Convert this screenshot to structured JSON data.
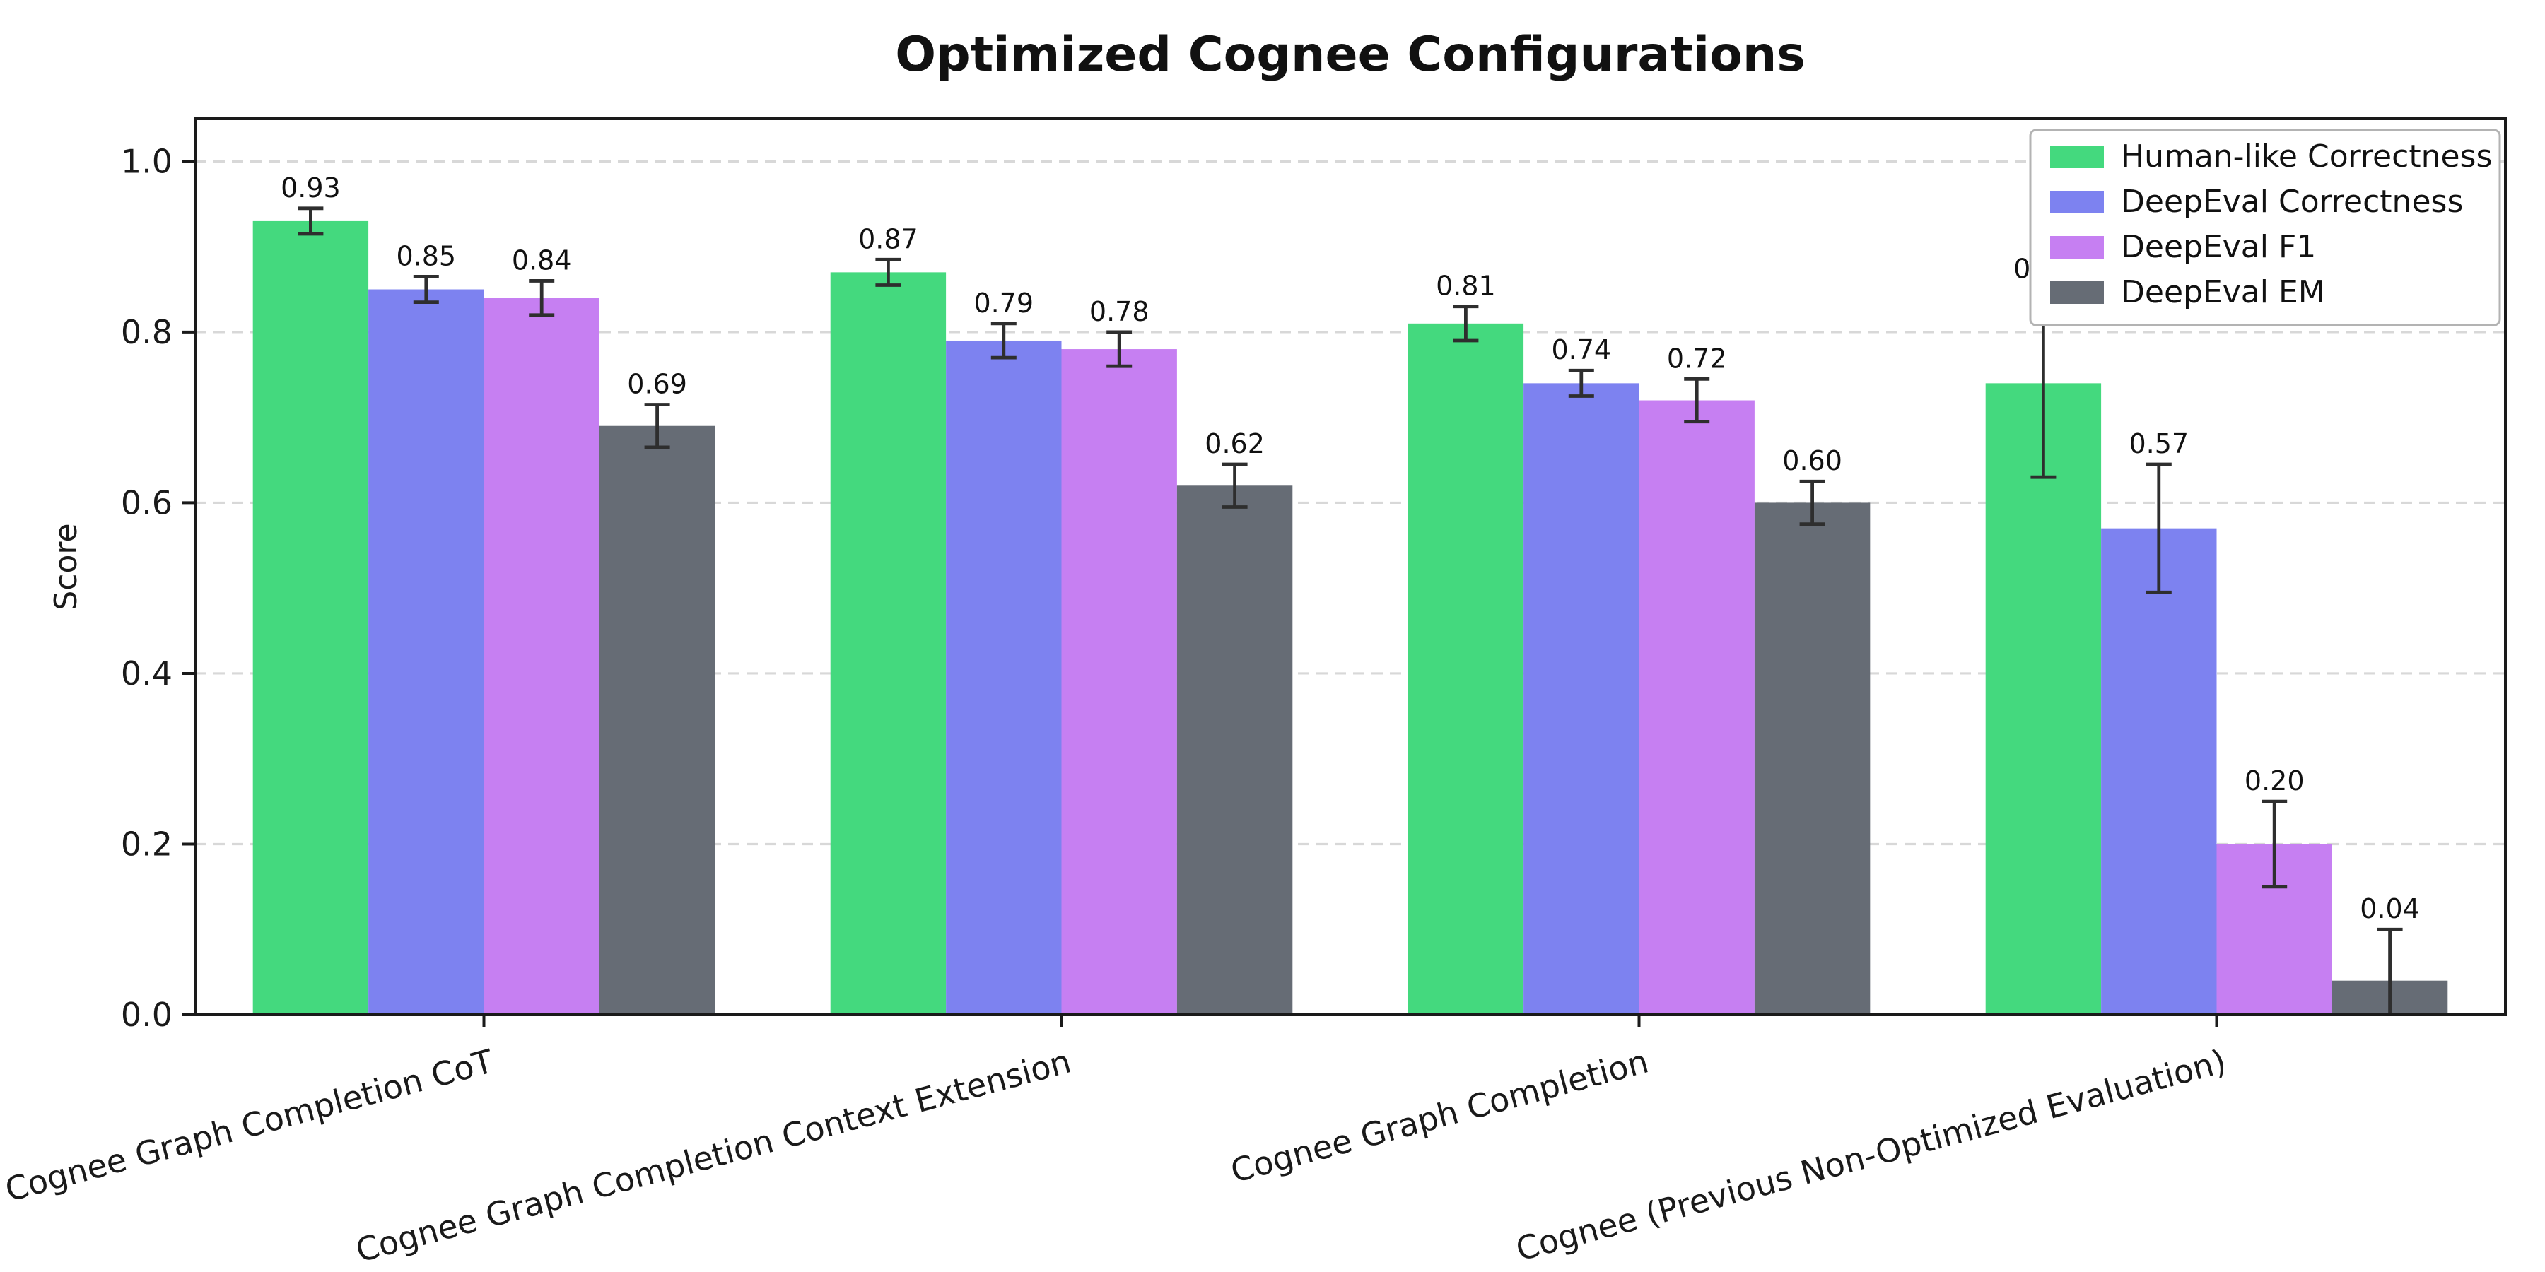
{
  "chart_data": {
    "type": "bar",
    "title": "Optimized Cognee Configurations",
    "xlabel": "",
    "ylabel": "Score",
    "ylim": [
      0,
      1.05
    ],
    "yticks": [
      0.0,
      0.2,
      0.4,
      0.6,
      0.8,
      1.0
    ],
    "grid": "dashed-horizontal",
    "legend_position": "upper-right",
    "error_bars": true,
    "bar_label_format": "0.00",
    "categories": [
      "Cognee Graph Completion CoT",
      "Cognee Graph Completion Context Extension",
      "Cognee Graph Completion",
      "Cognee (Previous Non-Optimized Evaluation)"
    ],
    "series": [
      {
        "name": "Human-like Correctness",
        "color": "#44d97e",
        "values": [
          0.93,
          0.87,
          0.81,
          0.74
        ],
        "errors": [
          0.015,
          0.015,
          0.02,
          0.11
        ]
      },
      {
        "name": "DeepEval Correctness",
        "color": "#7d82f0",
        "values": [
          0.85,
          0.79,
          0.74,
          0.57
        ],
        "errors": [
          0.015,
          0.02,
          0.015,
          0.075
        ]
      },
      {
        "name": "DeepEval F1",
        "color": "#c67ff2",
        "values": [
          0.84,
          0.78,
          0.72,
          0.2
        ],
        "errors": [
          0.02,
          0.02,
          0.025,
          0.05
        ]
      },
      {
        "name": "DeepEval EM",
        "color": "#666c75",
        "values": [
          0.69,
          0.62,
          0.6,
          0.04
        ],
        "errors": [
          0.025,
          0.025,
          0.025,
          0.06
        ]
      }
    ],
    "colors": {
      "grid": "#d8d8d8",
      "axis": "#1a1a1a",
      "error_bar": "#2e2e2e",
      "legend_border": "#b3b3b3",
      "background": "#ffffff"
    }
  }
}
